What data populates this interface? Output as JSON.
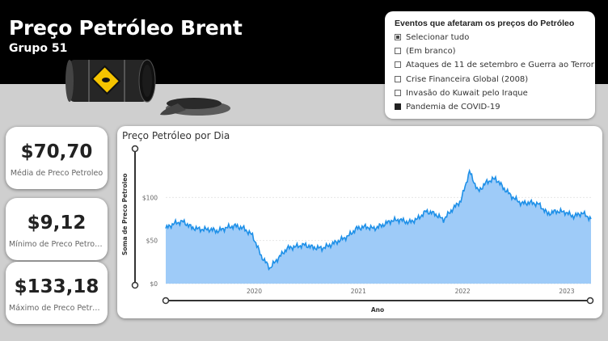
{
  "header": {
    "title": "Preço Petróleo Brent",
    "subtitle": "Grupo 51"
  },
  "slicer": {
    "title": "Eventos que afetaram os preços do Petróleo",
    "items": [
      {
        "label": "Selecionar tudo",
        "state": "partial"
      },
      {
        "label": "(Em branco)",
        "state": "unchecked"
      },
      {
        "label": "Ataques de 11 de setembro e Guerra ao Terror",
        "state": "unchecked"
      },
      {
        "label": "Crise Financeira Global (2008)",
        "state": "unchecked"
      },
      {
        "label": "Invasão do Kuwait pelo Iraque",
        "state": "unchecked"
      },
      {
        "label": "Pandemia de COVID-19",
        "state": "checked"
      }
    ]
  },
  "kpis": [
    {
      "value": "$70,70",
      "label": "Média de Preco Petroleo"
    },
    {
      "value": "$9,12",
      "label": "Mínimo de Preco Petroleo"
    },
    {
      "value": "$133,18",
      "label": "Máximo de Preco Petroleo"
    }
  ],
  "colors": {
    "line": "#1e90e8",
    "area": "#9ecbf8",
    "header": "#000000",
    "background": "#cfcfcf"
  },
  "chart_data": {
    "type": "area",
    "title": "Preço Petróleo por Dia",
    "xlabel": "Ano",
    "ylabel": "Soma de Preco Petroleo",
    "y_ticks": [
      "$0",
      "$50",
      "$100"
    ],
    "x_ticks": [
      "2020",
      "2021",
      "2022",
      "2023"
    ],
    "ylim": [
      0,
      150
    ],
    "grid": true,
    "x": [
      "2019-04",
      "2019-05",
      "2019-06",
      "2019-07",
      "2019-08",
      "2019-09",
      "2019-10",
      "2019-11",
      "2019-12",
      "2020-01",
      "2020-02",
      "2020-03",
      "2020-04",
      "2020-05",
      "2020-06",
      "2020-07",
      "2020-08",
      "2020-09",
      "2020-10",
      "2020-11",
      "2020-12",
      "2021-01",
      "2021-02",
      "2021-03",
      "2021-04",
      "2021-05",
      "2021-06",
      "2021-07",
      "2021-08",
      "2021-09",
      "2021-10",
      "2021-11",
      "2021-12",
      "2022-01",
      "2022-02",
      "2022-03",
      "2022-04",
      "2022-05",
      "2022-06",
      "2022-07",
      "2022-08",
      "2022-09",
      "2022-10",
      "2022-11",
      "2022-12",
      "2023-01",
      "2023-02",
      "2023-03",
      "2023-04",
      "2023-05"
    ],
    "values": [
      64,
      70,
      72,
      65,
      63,
      63,
      61,
      65,
      67,
      64,
      56,
      32,
      18,
      30,
      41,
      43,
      45,
      42,
      41,
      45,
      50,
      55,
      64,
      66,
      64,
      68,
      73,
      74,
      71,
      75,
      84,
      81,
      74,
      86,
      96,
      130,
      107,
      118,
      122,
      110,
      100,
      93,
      94,
      92,
      81,
      84,
      83,
      78,
      82,
      75
    ]
  }
}
